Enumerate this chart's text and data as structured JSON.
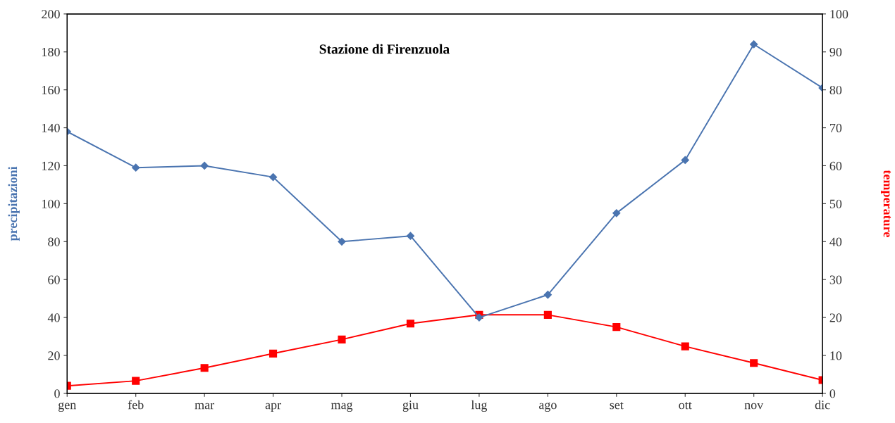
{
  "chart_data": {
    "type": "line",
    "title": "Stazione di Firenzuola",
    "ylabel": "precipitazioni",
    "y2label": "temperature",
    "categories": [
      "gen",
      "feb",
      "mar",
      "apr",
      "mag",
      "giu",
      "lug",
      "ago",
      "set",
      "ott",
      "nov",
      "dic"
    ],
    "series": [
      {
        "name": null,
        "color": "#4a74b0",
        "marker": "diamond",
        "values": [
          138,
          119,
          120,
          114,
          80,
          83,
          40,
          52,
          95,
          123,
          184,
          161
        ]
      },
      {
        "name": null,
        "color": "#ff0000",
        "marker": "square",
        "axis": "y2",
        "values": [
          2.0,
          3.3,
          6.7,
          10.5,
          14.2,
          18.4,
          20.7,
          20.7,
          17.5,
          12.4,
          8.0,
          3.5
        ]
      }
    ],
    "ylim": [
      0,
      200
    ],
    "yticks": [
      0,
      20,
      40,
      60,
      80,
      100,
      120,
      140,
      160,
      180,
      200
    ],
    "y2lim": [
      0,
      100
    ],
    "y2ticks": [
      0,
      10,
      20,
      30,
      40,
      50,
      60,
      70,
      80,
      90,
      100
    ],
    "grid": false,
    "legend": false,
    "line_style": "solid"
  }
}
